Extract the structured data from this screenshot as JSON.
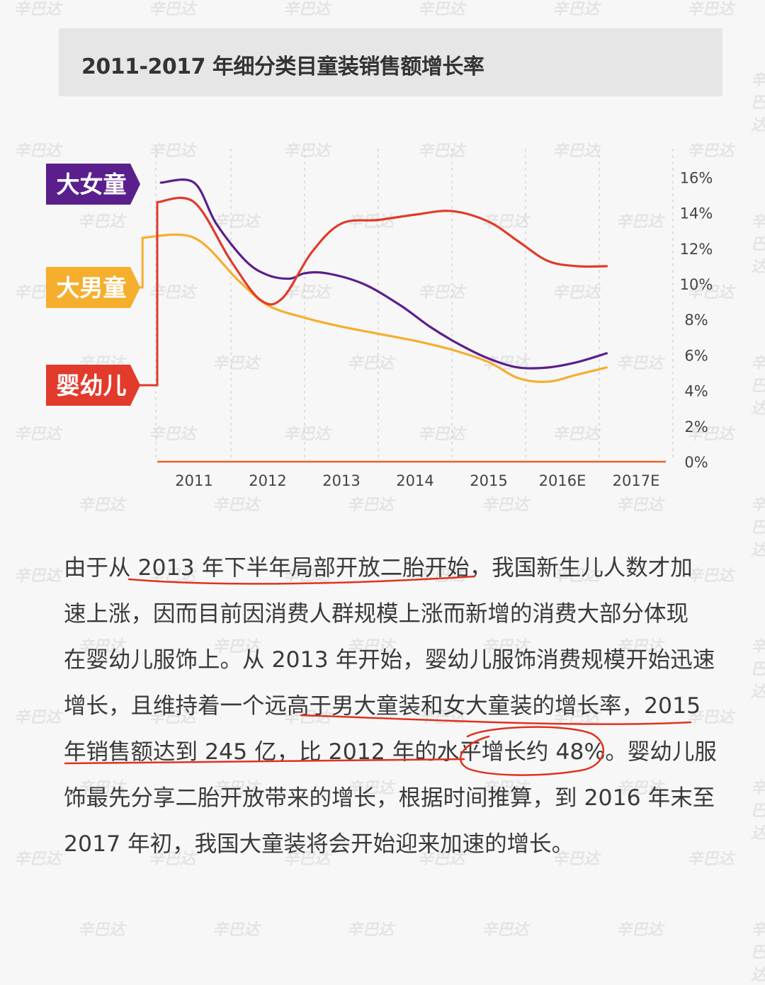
{
  "title": "2011-2017 年细分类目童装销售额增长率",
  "watermark": "辛巴达",
  "chart_data": {
    "type": "line",
    "categories": [
      "2011",
      "2012",
      "2013",
      "2014",
      "2015",
      "2016E",
      "2017E"
    ],
    "y_axis": {
      "ticks": [
        "0%",
        "2%",
        "4%",
        "6%",
        "8%",
        "10%",
        "12%",
        "14%",
        "16%"
      ],
      "min": 0,
      "max": 16,
      "position": "right",
      "unit": "%"
    },
    "grid": "vertical dashed",
    "series": [
      {
        "name": "大女童",
        "color": "#5a1f8c",
        "points": [
          [
            -0.45,
            15.7
          ],
          [
            0.0,
            15.7
          ],
          [
            0.3,
            13.4
          ],
          [
            0.7,
            11.3
          ],
          [
            1.0,
            10.5
          ],
          [
            1.3,
            10.3
          ],
          [
            1.5,
            10.6
          ],
          [
            1.8,
            10.6
          ],
          [
            2.3,
            10.0
          ],
          [
            2.8,
            8.8
          ],
          [
            3.2,
            7.6
          ],
          [
            3.6,
            6.6
          ],
          [
            4.0,
            5.8
          ],
          [
            4.4,
            5.3
          ],
          [
            4.8,
            5.3
          ],
          [
            5.2,
            5.6
          ],
          [
            5.6,
            6.1
          ]
        ]
      },
      {
        "name": "大男童",
        "color": "#f6ae2d",
        "points": [
          [
            -0.7,
            12.6
          ],
          [
            0.0,
            12.6
          ],
          [
            0.6,
            10.2
          ],
          [
            1.0,
            8.8
          ],
          [
            1.5,
            8.1
          ],
          [
            2.0,
            7.6
          ],
          [
            2.5,
            7.2
          ],
          [
            3.0,
            6.8
          ],
          [
            3.5,
            6.3
          ],
          [
            4.0,
            5.6
          ],
          [
            4.4,
            4.7
          ],
          [
            4.8,
            4.5
          ],
          [
            5.2,
            4.9
          ],
          [
            5.6,
            5.3
          ]
        ]
      },
      {
        "name": "婴幼儿",
        "color": "#e23a2b",
        "points": [
          [
            -0.5,
            14.6
          ],
          [
            0.0,
            14.6
          ],
          [
            0.5,
            11.3
          ],
          [
            0.9,
            9.1
          ],
          [
            1.2,
            9.2
          ],
          [
            1.6,
            11.8
          ],
          [
            2.0,
            13.4
          ],
          [
            2.5,
            13.6
          ],
          [
            3.0,
            13.9
          ],
          [
            3.5,
            14.1
          ],
          [
            4.0,
            13.5
          ],
          [
            4.4,
            12.4
          ],
          [
            4.8,
            11.3
          ],
          [
            5.2,
            11.0
          ],
          [
            5.6,
            11.0
          ]
        ]
      }
    ],
    "legend": [
      {
        "label": "大女童",
        "color": "#5a1f8c"
      },
      {
        "label": "大男童",
        "color": "#f6ae2d"
      },
      {
        "label": "婴幼儿",
        "color": "#e23a2b"
      }
    ]
  },
  "paragraph_lines": [
    "由于从 2013 年下半年局部开放二胎开始，我国新生儿人数才加",
    "速上涨，因而目前因消费人群规模上涨而新增的消费大部分体现",
    "在婴幼儿服饰上。从 2013 年开始，婴幼儿服饰消费规模开始迅速",
    "增长，且维持着一个远高于男大童装和女大童装的增长率，2015",
    "年销售额达到 245 亿，比 2012 年的水平增长约 48%。婴幼儿服",
    "饰最先分享二胎开放带来的增长，根据时间推算，到 2016 年末至",
    "2017 年初，我国大童装将会开始迎来加速的增长。"
  ],
  "annotation_color": "#e0321f"
}
